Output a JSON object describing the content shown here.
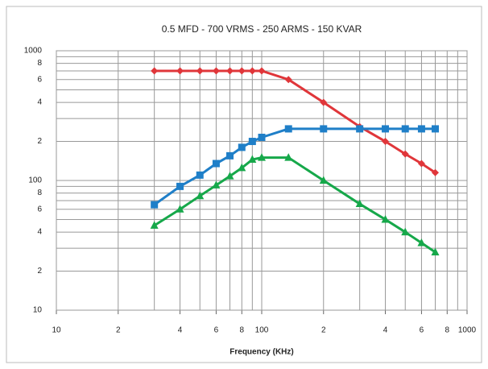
{
  "chart_data": {
    "type": "line",
    "title": "0.5 MFD - 700 VRMS - 250 ARMS - 150 KVAR",
    "x_label": "Frequency (KHz)",
    "log_x": true,
    "log_y": true,
    "grid": true,
    "xlim": [
      10,
      1000
    ],
    "ylim": [
      10,
      1000
    ],
    "xticks": [
      10,
      {
        "value": 20,
        "label": "2"
      },
      {
        "value": 40,
        "label": "4"
      },
      {
        "value": 60,
        "label": "6"
      },
      {
        "value": 80,
        "label": "8"
      },
      100,
      {
        "value": 200,
        "label": "2"
      },
      {
        "value": 400,
        "label": "4"
      },
      {
        "value": 600,
        "label": "6"
      },
      {
        "value": 800,
        "label": "8"
      },
      1000
    ],
    "x_minor_ticks": [
      30,
      50,
      70,
      90,
      300,
      500,
      700,
      900
    ],
    "yticks": [
      10,
      {
        "value": 20,
        "label": "2"
      },
      {
        "value": 40,
        "label": "4"
      },
      {
        "value": 60,
        "label": "6"
      },
      {
        "value": 80,
        "label": "8"
      },
      100,
      {
        "value": 200,
        "label": "2"
      },
      {
        "value": 400,
        "label": "4"
      },
      {
        "value": 600,
        "label": "6"
      },
      {
        "value": 800,
        "label": "8"
      },
      1000
    ],
    "y_minor_ticks": [
      30,
      50,
      70,
      90,
      300,
      500,
      700,
      900
    ],
    "x": [
      30,
      40,
      50,
      60,
      70,
      80,
      90,
      100,
      135,
      200,
      300,
      400,
      500,
      600,
      700
    ],
    "series": [
      {
        "color": "#e0363a",
        "marker": "diamond",
        "values": [
          700,
          700,
          700,
          700,
          700,
          700,
          700,
          700,
          600,
          400,
          260,
          200,
          160,
          135,
          115
        ]
      },
      {
        "color": "#1f7fc8",
        "marker": "square",
        "values": [
          65,
          90,
          110,
          135,
          155,
          180,
          200,
          215,
          250,
          250,
          250,
          250,
          250,
          250,
          250
        ]
      },
      {
        "color": "#16a84a",
        "marker": "triangle",
        "values": [
          45,
          60,
          76,
          92,
          108,
          125,
          145,
          150,
          150,
          100,
          66,
          50,
          40,
          33,
          28
        ]
      }
    ]
  }
}
